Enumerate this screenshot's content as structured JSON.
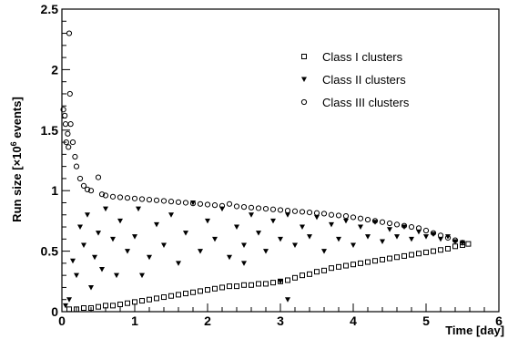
{
  "chart_data": {
    "type": "scatter",
    "xlabel": "Time [day]",
    "ylabel_pre": "Run size [",
    "ylabel_times": "×10",
    "ylabel_exp": "6",
    "ylabel_post": " events]",
    "xlim": [
      0,
      6
    ],
    "ylim": [
      0,
      2.5
    ],
    "x_ticks": [
      0,
      1,
      2,
      3,
      4,
      5,
      6
    ],
    "y_ticks": [
      0,
      0.5,
      1,
      1.5,
      2,
      2.5
    ],
    "x_tick_labels": [
      "0",
      "1",
      "2",
      "3",
      "4",
      "5",
      "6"
    ],
    "y_tick_labels": [
      "0",
      "0.5",
      "1",
      "1.5",
      "2",
      "2.5"
    ],
    "legend_position": "top-right",
    "grid": false,
    "series": [
      {
        "name": "Class I clusters",
        "marker": "square-open",
        "points": [
          [
            0.1,
            0.02
          ],
          [
            0.2,
            0.02
          ],
          [
            0.3,
            0.03
          ],
          [
            0.4,
            0.03
          ],
          [
            0.5,
            0.04
          ],
          [
            0.6,
            0.05
          ],
          [
            0.7,
            0.05
          ],
          [
            0.8,
            0.06
          ],
          [
            0.9,
            0.07
          ],
          [
            1.0,
            0.08
          ],
          [
            1.1,
            0.09
          ],
          [
            1.2,
            0.1
          ],
          [
            1.3,
            0.11
          ],
          [
            1.4,
            0.12
          ],
          [
            1.5,
            0.13
          ],
          [
            1.6,
            0.14
          ],
          [
            1.7,
            0.15
          ],
          [
            1.8,
            0.16
          ],
          [
            1.9,
            0.17
          ],
          [
            2.0,
            0.18
          ],
          [
            2.1,
            0.19
          ],
          [
            2.2,
            0.2
          ],
          [
            2.3,
            0.21
          ],
          [
            2.4,
            0.21
          ],
          [
            2.5,
            0.22
          ],
          [
            2.6,
            0.22
          ],
          [
            2.7,
            0.23
          ],
          [
            2.8,
            0.23
          ],
          [
            2.9,
            0.24
          ],
          [
            3.0,
            0.25
          ],
          [
            3.1,
            0.26
          ],
          [
            3.2,
            0.28
          ],
          [
            3.3,
            0.3
          ],
          [
            3.4,
            0.31
          ],
          [
            3.5,
            0.33
          ],
          [
            3.6,
            0.34
          ],
          [
            3.7,
            0.36
          ],
          [
            3.8,
            0.37
          ],
          [
            3.9,
            0.38
          ],
          [
            4.0,
            0.39
          ],
          [
            4.1,
            0.4
          ],
          [
            4.2,
            0.41
          ],
          [
            4.3,
            0.42
          ],
          [
            4.4,
            0.43
          ],
          [
            4.5,
            0.44
          ],
          [
            4.6,
            0.45
          ],
          [
            4.7,
            0.46
          ],
          [
            4.8,
            0.47
          ],
          [
            4.9,
            0.48
          ],
          [
            5.0,
            0.49
          ],
          [
            5.1,
            0.5
          ],
          [
            5.2,
            0.51
          ],
          [
            5.3,
            0.52
          ],
          [
            5.4,
            0.54
          ],
          [
            5.5,
            0.55
          ],
          [
            5.58,
            0.56
          ]
        ]
      },
      {
        "name": "Class II clusters",
        "marker": "triangle-down-filled",
        "points": [
          [
            0.05,
            0.05
          ],
          [
            0.1,
            0.1
          ],
          [
            0.15,
            0.42
          ],
          [
            0.2,
            0.3
          ],
          [
            0.25,
            0.7
          ],
          [
            0.3,
            0.55
          ],
          [
            0.35,
            0.8
          ],
          [
            0.4,
            0.2
          ],
          [
            0.45,
            0.45
          ],
          [
            0.5,
            0.65
          ],
          [
            0.55,
            0.35
          ],
          [
            0.6,
            0.85
          ],
          [
            0.7,
            0.6
          ],
          [
            0.75,
            0.3
          ],
          [
            0.8,
            0.75
          ],
          [
            0.9,
            0.5
          ],
          [
            1.0,
            0.62
          ],
          [
            1.05,
            0.85
          ],
          [
            1.1,
            0.3
          ],
          [
            1.2,
            0.45
          ],
          [
            1.3,
            0.72
          ],
          [
            1.4,
            0.55
          ],
          [
            1.5,
            0.8
          ],
          [
            1.6,
            0.4
          ],
          [
            1.7,
            0.65
          ],
          [
            1.8,
            0.9
          ],
          [
            1.9,
            0.5
          ],
          [
            2.0,
            0.75
          ],
          [
            2.1,
            0.6
          ],
          [
            2.2,
            0.85
          ],
          [
            2.3,
            0.45
          ],
          [
            2.4,
            0.7
          ],
          [
            2.5,
            0.55
          ],
          [
            2.6,
            0.8
          ],
          [
            2.7,
            0.65
          ],
          [
            2.8,
            0.5
          ],
          [
            2.9,
            0.75
          ],
          [
            3.0,
            0.6
          ],
          [
            3.1,
            0.8
          ],
          [
            3.2,
            0.55
          ],
          [
            3.3,
            0.7
          ],
          [
            3.4,
            0.62
          ],
          [
            3.5,
            0.78
          ],
          [
            3.6,
            0.5
          ],
          [
            3.7,
            0.72
          ],
          [
            3.8,
            0.6
          ],
          [
            3.9,
            0.75
          ],
          [
            4.0,
            0.55
          ],
          [
            4.1,
            0.7
          ],
          [
            4.2,
            0.62
          ],
          [
            4.3,
            0.74
          ],
          [
            4.4,
            0.58
          ],
          [
            4.5,
            0.68
          ],
          [
            4.6,
            0.62
          ],
          [
            4.7,
            0.7
          ],
          [
            4.8,
            0.6
          ],
          [
            4.9,
            0.66
          ],
          [
            5.0,
            0.62
          ],
          [
            5.1,
            0.64
          ],
          [
            5.2,
            0.6
          ],
          [
            5.3,
            0.62
          ],
          [
            5.4,
            0.58
          ],
          [
            5.5,
            0.57
          ],
          [
            3.1,
            0.1
          ],
          [
            3.0,
            0.25
          ],
          [
            2.5,
            0.4
          ]
        ]
      },
      {
        "name": "Class III clusters",
        "marker": "circle-open",
        "points": [
          [
            0.02,
            1.67
          ],
          [
            0.04,
            1.62
          ],
          [
            0.05,
            1.55
          ],
          [
            0.06,
            1.4
          ],
          [
            0.08,
            1.47
          ],
          [
            0.09,
            1.36
          ],
          [
            0.1,
            2.3
          ],
          [
            0.11,
            1.8
          ],
          [
            0.12,
            1.55
          ],
          [
            0.15,
            1.4
          ],
          [
            0.18,
            1.28
          ],
          [
            0.2,
            1.2
          ],
          [
            0.25,
            1.1
          ],
          [
            0.3,
            1.04
          ],
          [
            0.35,
            1.01
          ],
          [
            0.4,
            1.0
          ],
          [
            0.5,
            1.11
          ],
          [
            0.55,
            0.97
          ],
          [
            0.6,
            0.96
          ],
          [
            0.7,
            0.95
          ],
          [
            0.8,
            0.945
          ],
          [
            0.9,
            0.94
          ],
          [
            1.0,
            0.935
          ],
          [
            1.1,
            0.93
          ],
          [
            1.2,
            0.925
          ],
          [
            1.3,
            0.92
          ],
          [
            1.4,
            0.915
          ],
          [
            1.5,
            0.91
          ],
          [
            1.6,
            0.905
          ],
          [
            1.7,
            0.9
          ],
          [
            1.8,
            0.895
          ],
          [
            1.9,
            0.89
          ],
          [
            2.0,
            0.885
          ],
          [
            2.1,
            0.88
          ],
          [
            2.2,
            0.875
          ],
          [
            2.3,
            0.89
          ],
          [
            2.4,
            0.87
          ],
          [
            2.5,
            0.865
          ],
          [
            2.6,
            0.86
          ],
          [
            2.7,
            0.855
          ],
          [
            2.8,
            0.85
          ],
          [
            2.9,
            0.845
          ],
          [
            3.0,
            0.84
          ],
          [
            3.1,
            0.835
          ],
          [
            3.2,
            0.83
          ],
          [
            3.3,
            0.825
          ],
          [
            3.4,
            0.82
          ],
          [
            3.5,
            0.815
          ],
          [
            3.6,
            0.81
          ],
          [
            3.7,
            0.8
          ],
          [
            3.8,
            0.795
          ],
          [
            3.9,
            0.79
          ],
          [
            4.0,
            0.78
          ],
          [
            4.1,
            0.77
          ],
          [
            4.2,
            0.76
          ],
          [
            4.3,
            0.75
          ],
          [
            4.4,
            0.74
          ],
          [
            4.5,
            0.73
          ],
          [
            4.6,
            0.72
          ],
          [
            4.7,
            0.71
          ],
          [
            4.8,
            0.7
          ],
          [
            4.9,
            0.69
          ],
          [
            5.0,
            0.67
          ],
          [
            5.1,
            0.65
          ],
          [
            5.2,
            0.63
          ],
          [
            5.3,
            0.61
          ],
          [
            5.4,
            0.59
          ],
          [
            5.5,
            0.57
          ]
        ]
      }
    ]
  }
}
